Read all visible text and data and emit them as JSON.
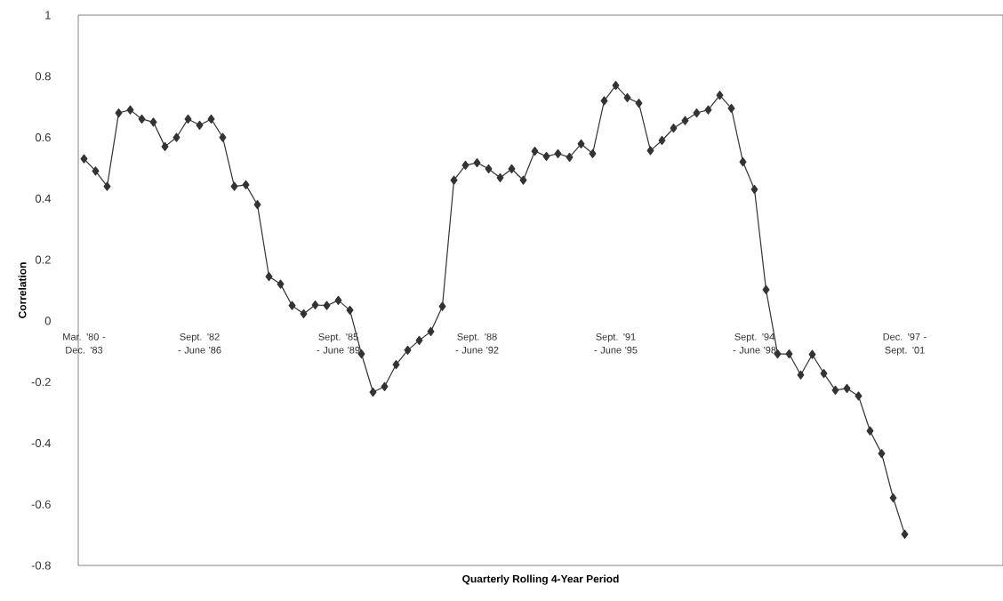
{
  "chart_data": {
    "type": "line",
    "xlabel": "Quarterly Rolling 4-Year Period",
    "ylabel": "Correlation",
    "categories": [
      "Mar. '80 - Dec. '83",
      null,
      null,
      null,
      null,
      null,
      null,
      null,
      null,
      null,
      "Sept. '82 - June '86",
      null,
      null,
      null,
      null,
      null,
      null,
      null,
      null,
      null,
      null,
      null,
      "Sept. '85 - June '89",
      null,
      null,
      null,
      null,
      null,
      null,
      null,
      null,
      null,
      null,
      null,
      "Sept. '88 - June '92",
      null,
      null,
      null,
      null,
      null,
      null,
      null,
      null,
      null,
      null,
      null,
      "Sept. '91 - June '95",
      null,
      null,
      null,
      null,
      null,
      null,
      null,
      null,
      null,
      null,
      null,
      "Sept. '94 - June '98",
      null,
      null,
      null,
      null,
      null,
      null,
      null,
      null,
      null,
      null,
      null,
      null,
      "Dec. '97 - Sept. '01",
      null,
      null,
      null,
      null,
      null,
      null,
      null,
      null
    ],
    "values": [
      0.53,
      0.49,
      0.44,
      0.68,
      0.69,
      0.66,
      0.65,
      0.57,
      0.6,
      0.66,
      0.64,
      0.66,
      0.6,
      0.44,
      0.445,
      0.38,
      0.145,
      0.12,
      0.05,
      0.023,
      0.052,
      0.05,
      0.067,
      0.035,
      -0.108,
      -0.233,
      -0.215,
      -0.143,
      -0.096,
      -0.064,
      -0.035,
      0.047,
      0.46,
      0.509,
      0.517,
      0.497,
      0.468,
      0.497,
      0.46,
      0.555,
      0.538,
      0.547,
      0.535,
      0.579,
      0.547,
      0.72,
      0.77,
      0.73,
      0.712,
      0.557,
      0.59,
      0.63,
      0.655,
      0.68,
      0.69,
      0.738,
      0.695,
      0.52,
      0.43,
      0.102,
      -0.108,
      -0.108,
      -0.177,
      -0.11,
      -0.172,
      -0.227,
      -0.221,
      -0.246,
      -0.36,
      -0.434,
      -0.579,
      -0.698,
      null,
      null,
      null,
      null,
      null,
      null,
      null,
      null
    ],
    "color": "#333333",
    "marker": "diamond",
    "line_style": "solid",
    "ylim": [
      -0.8,
      1
    ],
    "yticks": [
      -0.8,
      -0.6,
      -0.4,
      -0.2,
      0,
      0.2,
      0.4,
      0.6,
      0.8,
      1
    ],
    "grid": false,
    "legend": false
  }
}
